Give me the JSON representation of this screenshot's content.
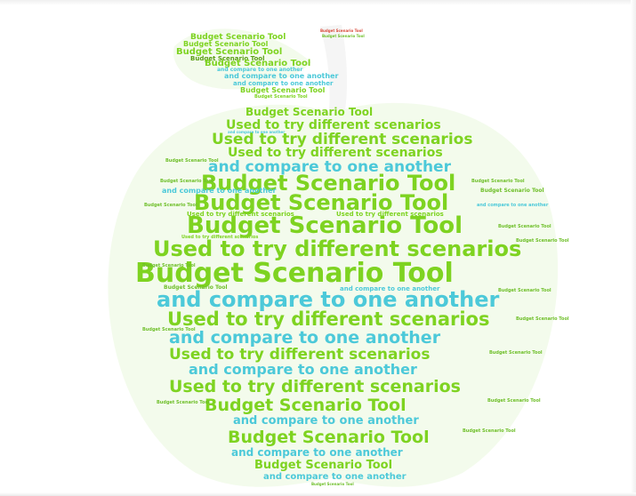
{
  "phrases": {
    "title": "Budget Scenario Tool",
    "line_a": "Used to try different scenarios",
    "line_b": "and compare to one another"
  },
  "colors": {
    "green": "#7ed321",
    "dark_green": "#4b8e0e",
    "blue": "#4cc9d9",
    "fill_light": "#eef9e3",
    "stem": "#c9c9c9",
    "red_small": "#d94a3a"
  }
}
